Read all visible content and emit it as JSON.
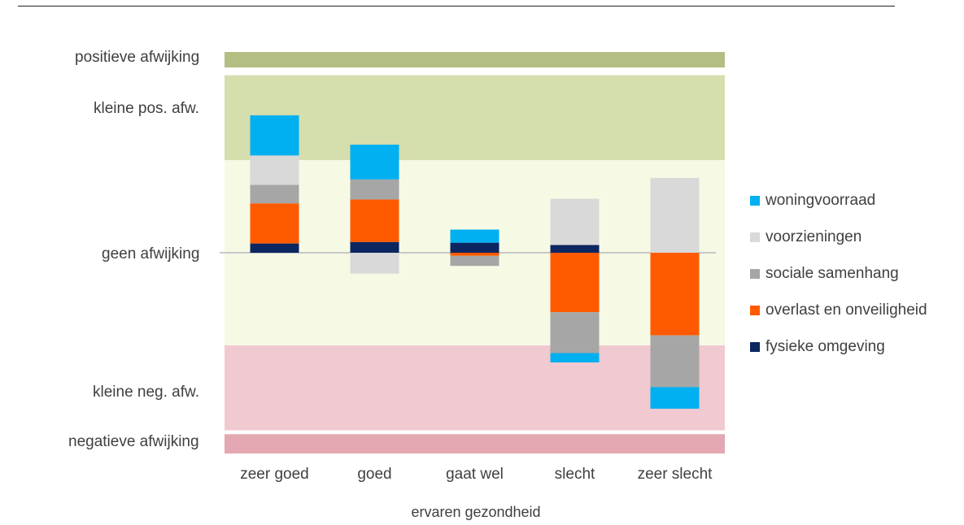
{
  "chart_data": {
    "type": "bar",
    "stacked": true,
    "xlabel": "ervaren gezondheid",
    "ylabel": "",
    "categories": [
      "zeer goed",
      "goed",
      "gaat wel",
      "slecht",
      "zeer slecht"
    ],
    "zones": [
      {
        "label": "positieve afwijking",
        "range": [
          2.4,
          2.6
        ],
        "color": "#b3be82"
      },
      {
        "label": "kleine pos. afw.",
        "range": [
          1.2,
          2.3
        ],
        "color": "#d5dead"
      },
      {
        "label": "geen afwijking",
        "range": [
          -1.2,
          1.2
        ],
        "color": "#f6f9e4"
      },
      {
        "label": "kleine neg. afw.",
        "range": [
          -2.3,
          -1.2
        ],
        "color": "#f1c9d0"
      },
      {
        "label": "negatieve afwijking",
        "range": [
          -2.6,
          -2.35
        ],
        "color": "#e3a8b1"
      }
    ],
    "ylim": [
      -2.6,
      2.6
    ],
    "series": [
      {
        "name": "fysieke omgeving",
        "color": "#0b2660",
        "values": [
          0.12,
          0.14,
          0.13,
          0.1,
          0.0
        ]
      },
      {
        "name": "overlast en onveiligheid",
        "color": "#ff5a00",
        "values": [
          0.52,
          0.55,
          -0.04,
          -0.77,
          -1.07
        ]
      },
      {
        "name": "sociale samenhang",
        "color": "#a6a6a6",
        "values": [
          0.24,
          0.26,
          -0.13,
          -0.53,
          -0.67
        ]
      },
      {
        "name": "voorzieningen",
        "color": "#d9d9d9",
        "values": [
          0.38,
          0.0,
          0.0,
          0.6,
          0.97
        ]
      },
      {
        "name": "woningvoorraad",
        "color": "#00b0f0",
        "values": [
          0.52,
          0.45,
          0.17,
          -0.12,
          -0.28
        ]
      }
    ],
    "legend": [
      "woningvoorraad",
      "voorzieningen",
      "sociale samenhang",
      "overlast en onveiligheid",
      "fysieke omgeving"
    ],
    "negative_extra": [
      {
        "category": "goed",
        "series": "voorzieningen",
        "value": -0.27
      }
    ],
    "legend_position": "right"
  }
}
